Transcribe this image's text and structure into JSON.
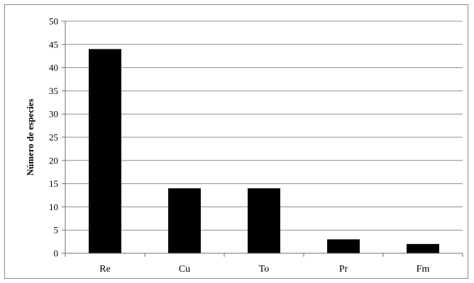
{
  "chart_data": {
    "type": "bar",
    "categories": [
      "Re",
      "Cu",
      "To",
      "Pr",
      "Fm"
    ],
    "values": [
      44,
      14,
      14,
      3,
      2
    ],
    "title": "",
    "xlabel": "",
    "ylabel": "Número de especies",
    "ylim": [
      0,
      50
    ],
    "yticks": [
      0,
      5,
      10,
      15,
      20,
      25,
      30,
      35,
      40,
      45,
      50
    ],
    "grid": true,
    "legend": "none",
    "colors": {
      "bar": "#000000",
      "grid": "#8c8c8c",
      "axis": "#6e6e6e"
    }
  }
}
